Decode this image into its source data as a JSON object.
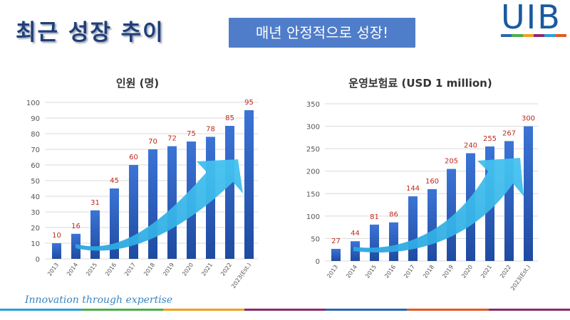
{
  "header": {
    "title": "최근 성장 추이",
    "badge": "매년 안정적으로 성장!",
    "logo": "UIB"
  },
  "footer": {
    "slogan": "Innovation through expertise"
  },
  "colors": {
    "bar": "#2d5fbf",
    "label": "#c0281e",
    "arrow": "#3fb8ea",
    "title": "#1f3f78"
  },
  "chart_data": [
    {
      "type": "bar",
      "title": "인원 (명)",
      "categories": [
        "2013",
        "2014",
        "2015",
        "2016",
        "2017",
        "2018",
        "2019",
        "2020",
        "2021",
        "2022",
        "2023(Est.)"
      ],
      "values": [
        10,
        16,
        31,
        45,
        60,
        70,
        72,
        75,
        78,
        85,
        95
      ],
      "ylim": [
        0,
        100
      ],
      "yticks": [
        0,
        10,
        20,
        30,
        40,
        50,
        60,
        70,
        80,
        90,
        100
      ],
      "xlabel": "",
      "ylabel": ""
    },
    {
      "type": "bar",
      "title": "운영보험료 (USD 1 million)",
      "categories": [
        "2013",
        "2014",
        "2015",
        "2016",
        "2017",
        "2018",
        "2019",
        "2020",
        "2021",
        "2022",
        "2023(Est.)"
      ],
      "values": [
        27,
        44,
        81,
        86,
        144,
        160,
        205,
        240,
        255,
        267,
        300
      ],
      "ylim": [
        0,
        350
      ],
      "yticks": [
        0,
        50,
        100,
        150,
        200,
        250,
        300,
        350
      ],
      "xlabel": "",
      "ylabel": ""
    }
  ]
}
